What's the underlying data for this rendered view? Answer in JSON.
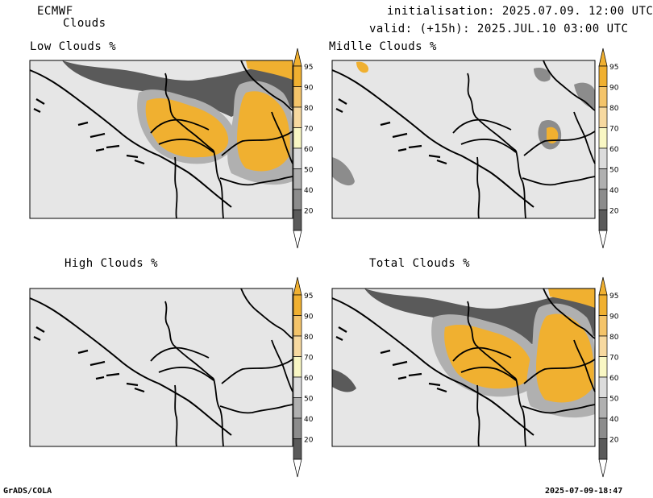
{
  "header": {
    "model": "ECMWF",
    "product": "Clouds",
    "init_line": "initialisation: 2025.07.09. 12:00 UTC",
    "valid_line": "valid: (+15h): 2025.JUL.10 03:00 UTC"
  },
  "panels": {
    "low": {
      "title": "Low Clouds %"
    },
    "middle": {
      "title": "Midlle Clouds %"
    },
    "high": {
      "title": "High Clouds %"
    },
    "total": {
      "title": "Total Clouds %"
    }
  },
  "colorbar": {
    "labels": [
      "95",
      "90",
      "80",
      "70",
      "60",
      "50",
      "40",
      "20"
    ],
    "colors": {
      "c95": "#f0b030",
      "c90": "#f4c46a",
      "c80": "#f7d9a0",
      "c70": "#f9f7c4",
      "c60": "#dcdcdc",
      "c50": "#b0b0b0",
      "c40": "#8c8c8c",
      "c20": "#5a5a5a",
      "bg": "#e6e6e6"
    }
  },
  "footer": {
    "left": "GrADS/COLA",
    "right": "2025-07-09-18:47"
  }
}
